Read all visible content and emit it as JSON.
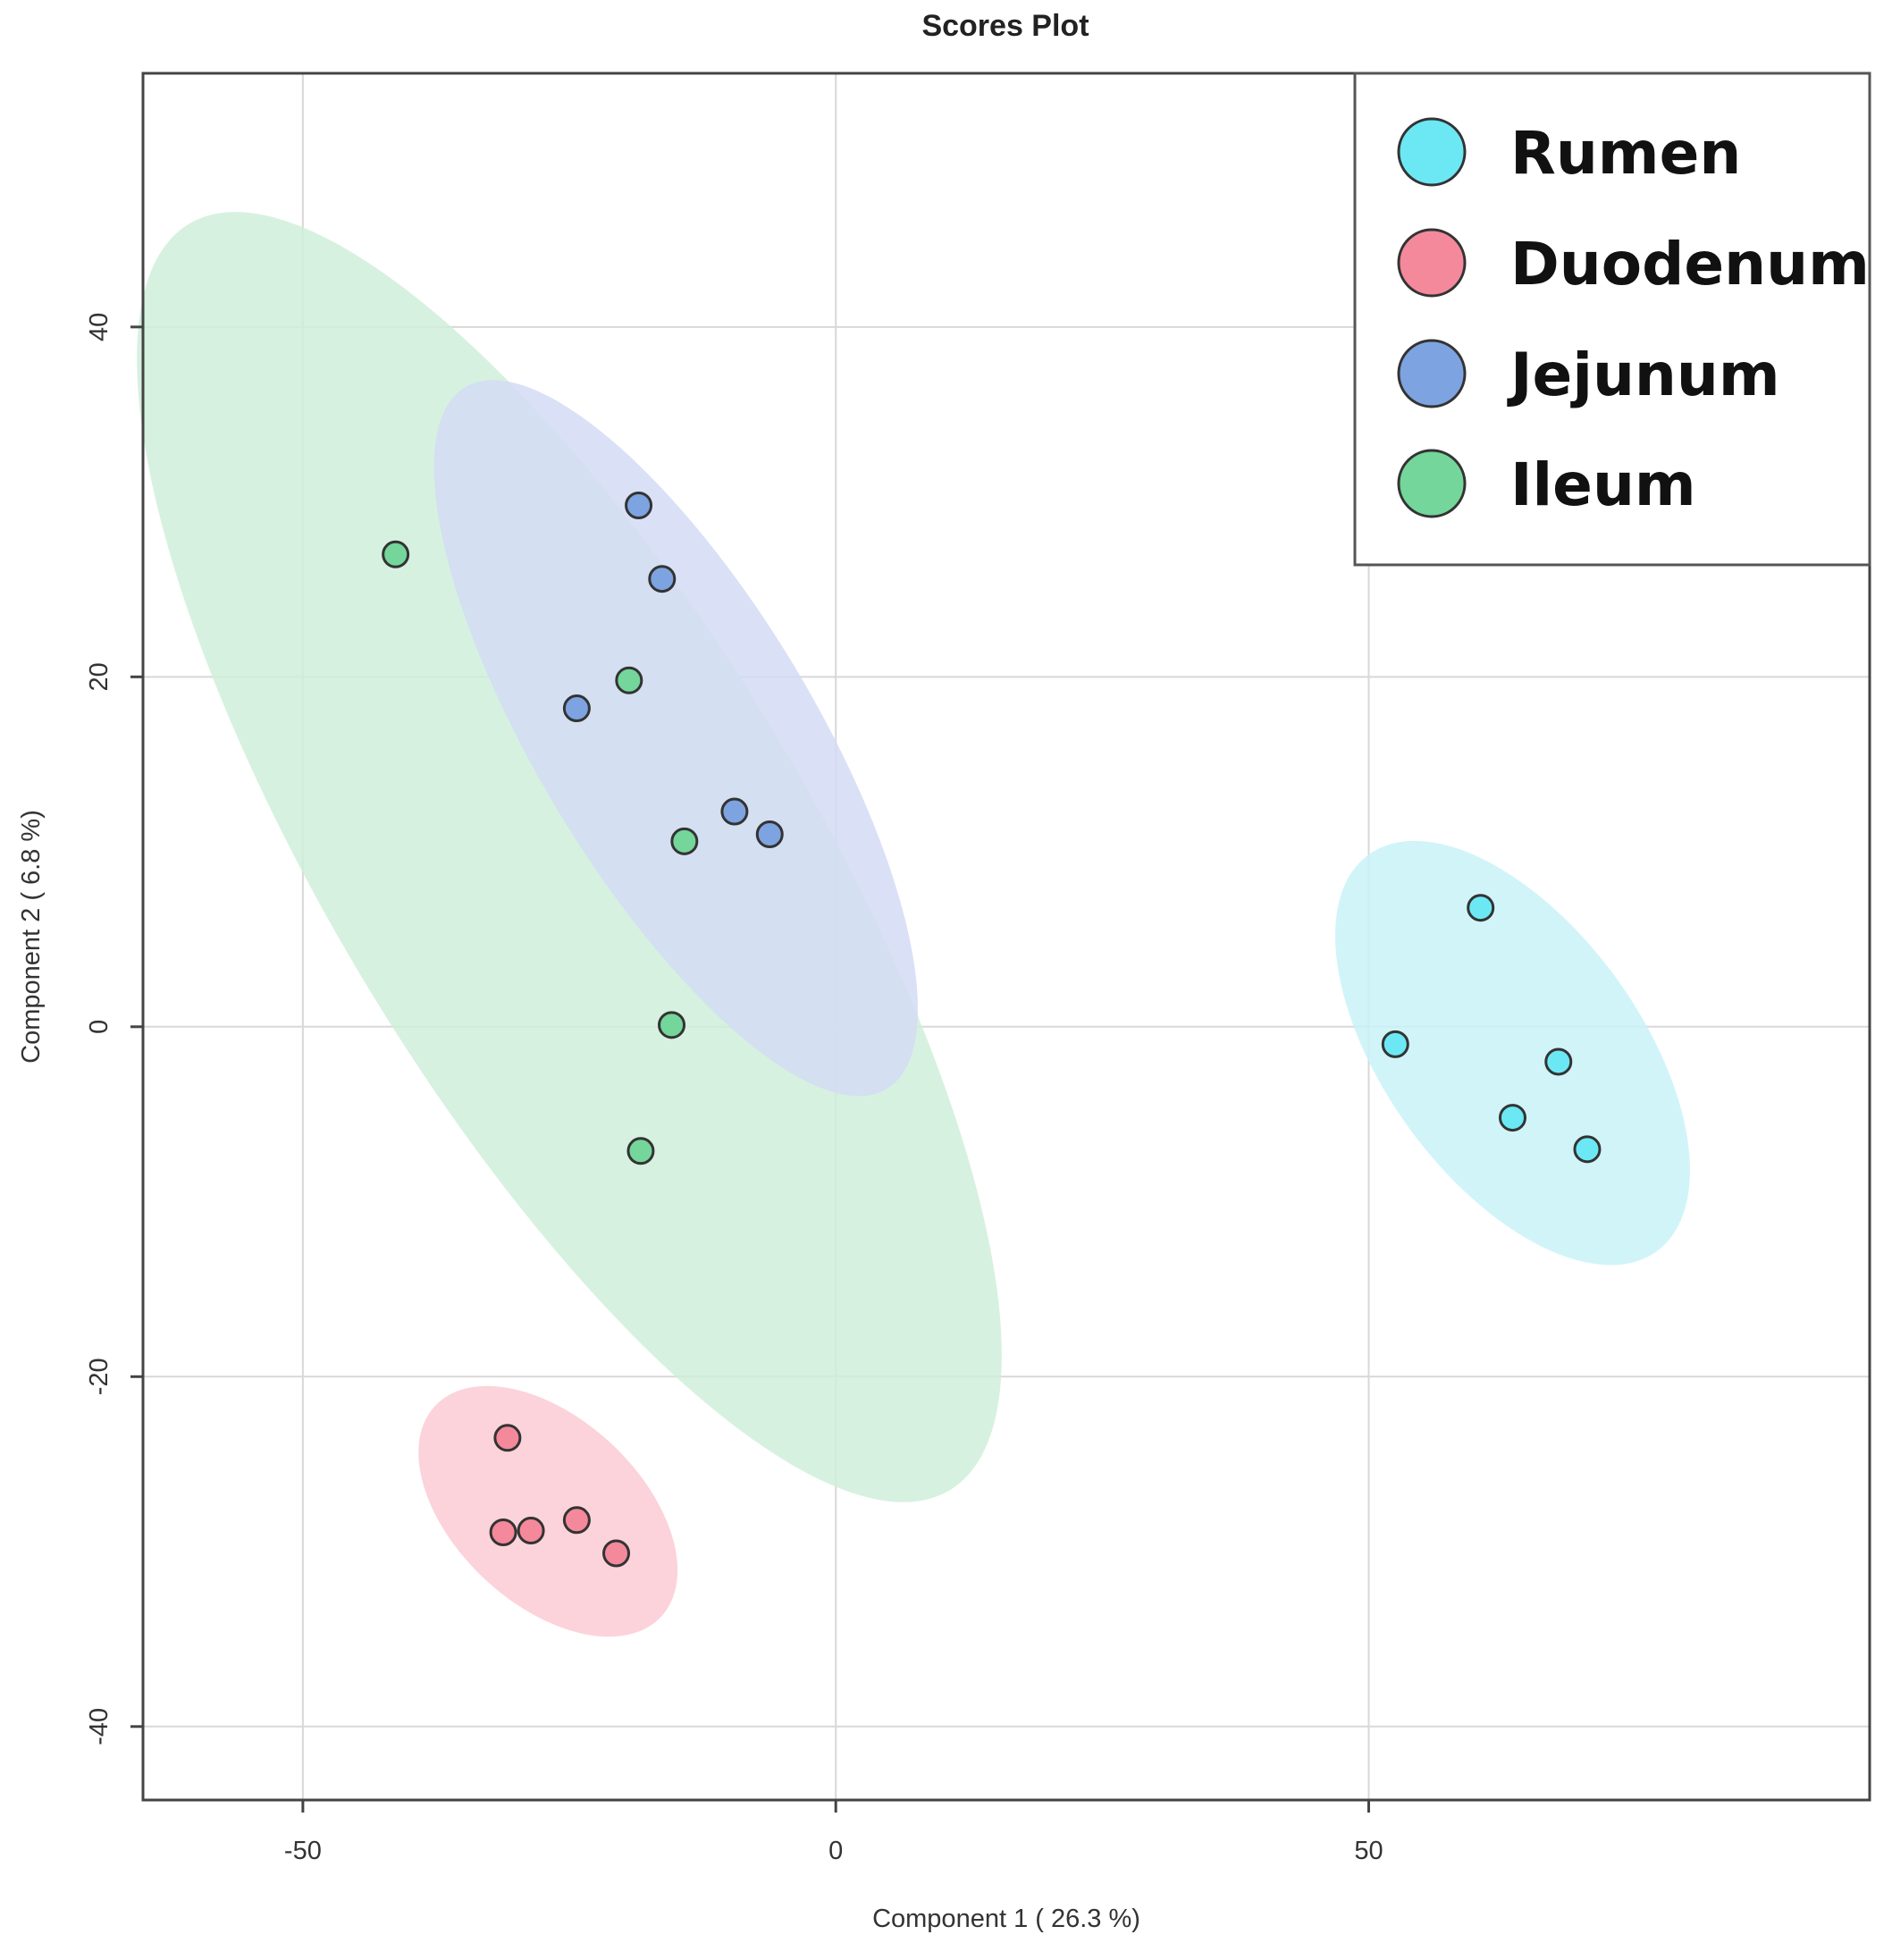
{
  "chart_data": {
    "type": "scatter",
    "title": "Scores Plot",
    "xlabel": "Component 1 ( 26.3 %)",
    "ylabel": "Component 2 ( 6.8 %)",
    "xlim": [
      -65,
      97
    ],
    "ylim": [
      -44.2,
      54.5
    ],
    "xticks": [
      -50,
      0,
      50
    ],
    "yticks": [
      -40,
      -20,
      0,
      20,
      40
    ],
    "grid": true,
    "legend_position": "top-right",
    "series": [
      {
        "name": "Rumen",
        "color": "#6ce8f5",
        "ellipse_color": "#c9f2f8",
        "points": [
          [
            60.5,
            6.8
          ],
          [
            52.5,
            -1
          ],
          [
            67.8,
            -2
          ],
          [
            63.5,
            -5.2
          ],
          [
            70.5,
            -7
          ]
        ],
        "ellipse": {
          "center": [
            63.5,
            -1.5
          ],
          "semi_axes": [
            12,
            23
          ],
          "tilt_deg": -36
        }
      },
      {
        "name": "Duodenum",
        "color": "#f4899b",
        "ellipse_color": "#fbcbd3",
        "points": [
          [
            -30.8,
            -23.5
          ],
          [
            -31.2,
            -28.9
          ],
          [
            -28.6,
            -28.8
          ],
          [
            -24.3,
            -28.2
          ],
          [
            -20.6,
            -30.1
          ]
        ],
        "ellipse": {
          "center": [
            -27,
            -27.7
          ],
          "semi_axes": [
            8.7,
            14.5
          ],
          "tilt_deg": -47
        }
      },
      {
        "name": "Jejunum",
        "color": "#7da3e0",
        "ellipse_color": "#d4dcf4",
        "points": [
          [
            -18.5,
            29.8
          ],
          [
            -16.3,
            25.6
          ],
          [
            -24.3,
            18.2
          ],
          [
            -9.5,
            12.3
          ],
          [
            -6.2,
            11
          ]
        ],
        "ellipse": {
          "center": [
            -15,
            16.5
          ],
          "semi_axes": [
            13,
            38.4
          ],
          "tilt_deg": -31
        }
      },
      {
        "name": "Ileum",
        "color": "#74d69a",
        "ellipse_color": "#d0eedb",
        "points": [
          [
            -41.3,
            27
          ],
          [
            -19.4,
            19.8
          ],
          [
            -14.2,
            10.6
          ],
          [
            -15.4,
            0.1
          ],
          [
            -18.3,
            -7.1
          ]
        ],
        "ellipse": {
          "center": [
            -25,
            9.7
          ],
          "semi_axes": [
            22.5,
            69.3
          ],
          "tilt_deg": -31
        }
      }
    ]
  }
}
